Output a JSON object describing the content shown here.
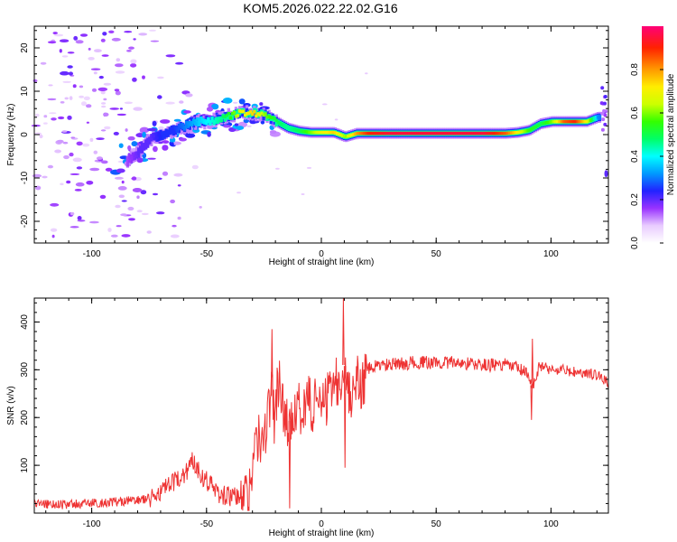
{
  "title": "KOM5.2026.022.22.02.G16",
  "colorbar": {
    "label": "Normalized spectral amplitude",
    "ticks": [
      "0.0",
      "0.2",
      "0.4",
      "0.6",
      "0.8"
    ],
    "tick_values": [
      0.0,
      0.2,
      0.4,
      0.6,
      0.8
    ],
    "range": [
      0,
      1
    ]
  },
  "chart_data": [
    {
      "type": "heatmap",
      "xlabel": "Height of straight line (km)",
      "ylabel": "Frequency (Hz)",
      "xlim": [
        -125,
        125
      ],
      "ylim": [
        -25,
        25
      ],
      "xticks": [
        -100,
        -50,
        0,
        50,
        100
      ],
      "yticks": [
        -20,
        -10,
        0,
        10,
        20
      ],
      "xtick_labels": [
        "-100",
        "-50",
        "0",
        "50",
        "100"
      ],
      "ytick_labels": [
        "-20",
        "-10",
        "0",
        "10",
        "20"
      ],
      "ridge": {
        "x": [
          -85,
          -80,
          -75,
          -70,
          -65,
          -60,
          -55,
          -50,
          -45,
          -40,
          -35,
          -30,
          -25,
          -20,
          -15,
          -10,
          -5,
          0,
          5,
          10,
          15,
          20,
          30,
          40,
          50,
          60,
          70,
          80,
          85,
          90,
          95,
          100,
          105,
          110,
          115,
          120
        ],
        "freq": [
          -6,
          -4,
          -1,
          0,
          1,
          2,
          3,
          3,
          3.5,
          4.5,
          5,
          5,
          4.5,
          3,
          1.5,
          0.8,
          0.5,
          0.5,
          0.5,
          -0.5,
          0.3,
          0.3,
          0.3,
          0.3,
          0.3,
          0.3,
          0.3,
          0.3,
          0.5,
          1,
          2.5,
          3,
          3,
          3,
          3,
          4
        ],
        "amplitude": [
          0.15,
          0.2,
          0.2,
          0.25,
          0.25,
          0.3,
          0.35,
          0.4,
          0.45,
          0.55,
          0.7,
          0.75,
          0.6,
          0.5,
          0.45,
          0.5,
          0.6,
          0.7,
          0.75,
          0.6,
          0.8,
          0.9,
          0.95,
          0.95,
          0.95,
          0.95,
          0.95,
          0.85,
          0.7,
          0.55,
          0.5,
          0.6,
          0.85,
          0.9,
          0.7,
          0.3
        ]
      }
    },
    {
      "type": "line",
      "xlabel": "Height of straight line (km)",
      "ylabel": "SNR (v/v)",
      "xlim": [
        -125,
        125
      ],
      "ylim": [
        0,
        450
      ],
      "xticks": [
        -100,
        -50,
        0,
        50,
        100
      ],
      "yticks": [
        100,
        200,
        300,
        400
      ],
      "xtick_labels": [
        "-100",
        "-50",
        "0",
        "50",
        "100"
      ],
      "ytick_labels": [
        "100",
        "200",
        "300",
        "400"
      ],
      "color": "#ee3333",
      "series": [
        {
          "x": [
            -125,
            -110,
            -95,
            -85,
            -75,
            -70,
            -65,
            -60,
            -56,
            -52,
            -48,
            -45,
            -40,
            -35,
            -32,
            -30,
            -28,
            -26,
            -24,
            -22,
            -20,
            -18,
            -16,
            -14,
            -12,
            -10,
            -8,
            -6,
            -4,
            -2,
            0,
            2,
            4,
            6,
            8,
            10,
            12,
            14,
            16,
            18,
            20,
            25,
            30,
            40,
            50,
            60,
            70,
            80,
            85,
            90,
            92,
            95,
            100,
            105,
            110,
            115,
            120,
            125
          ],
          "y": [
            20,
            18,
            22,
            25,
            30,
            45,
            60,
            80,
            110,
            80,
            60,
            40,
            35,
            30,
            40,
            100,
            160,
            140,
            180,
            250,
            230,
            300,
            180,
            190,
            220,
            230,
            210,
            250,
            210,
            240,
            250,
            230,
            260,
            280,
            270,
            320,
            240,
            260,
            280,
            270,
            300,
            310,
            310,
            315,
            315,
            315,
            310,
            310,
            305,
            290,
            260,
            310,
            300,
            300,
            295,
            290,
            290,
            275
          ]
        }
      ]
    }
  ]
}
